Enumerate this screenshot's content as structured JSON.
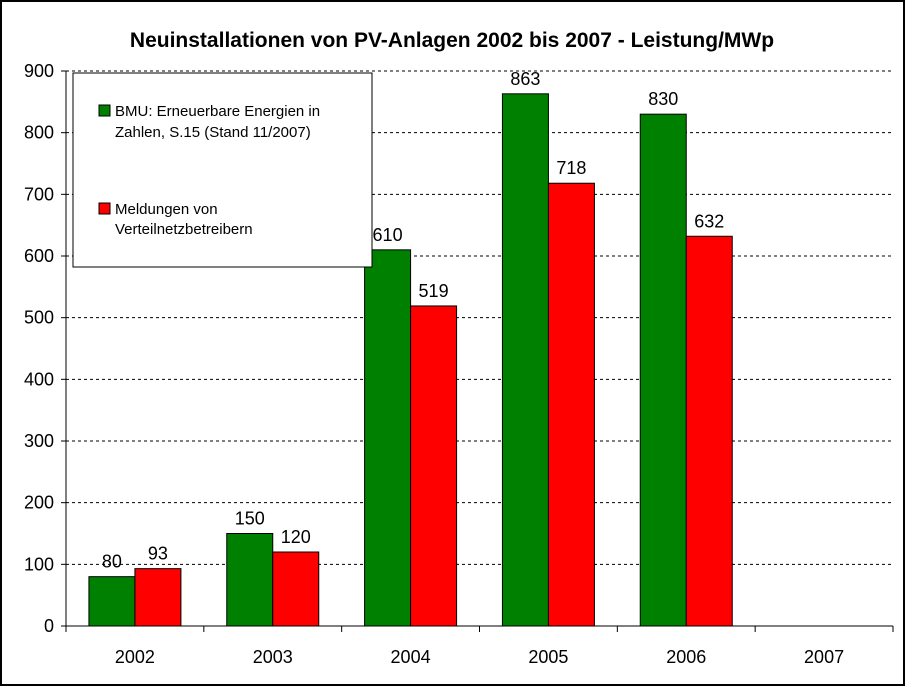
{
  "chart_data": {
    "type": "bar",
    "title": "Neuinstallationen von PV-Anlagen 2002 bis 2007  -  Leistung/MWp",
    "categories": [
      "2002",
      "2003",
      "2004",
      "2005",
      "2006",
      "2007"
    ],
    "series": [
      {
        "name": "BMU: Erneuerbare Energien in Zahlen, S.15 (Stand 11/2007)",
        "name_lines": [
          "BMU: Erneuerbare Energien in",
          "Zahlen, S.15 (Stand 11/2007)"
        ],
        "color": "#008000",
        "values": [
          80,
          150,
          610,
          863,
          830,
          null
        ]
      },
      {
        "name": "Meldungen von Verteilnetzbetreibern",
        "name_lines": [
          "Meldungen von",
          "Verteilnetzbetreibern"
        ],
        "color": "#ff0000",
        "values": [
          93,
          120,
          519,
          718,
          632,
          null
        ]
      }
    ],
    "ylim": [
      0,
      900
    ],
    "yticks": [
      0,
      100,
      200,
      300,
      400,
      500,
      600,
      700,
      800,
      900
    ],
    "xlabel": "",
    "ylabel": "",
    "grid": true,
    "legend_position": "top-left"
  }
}
